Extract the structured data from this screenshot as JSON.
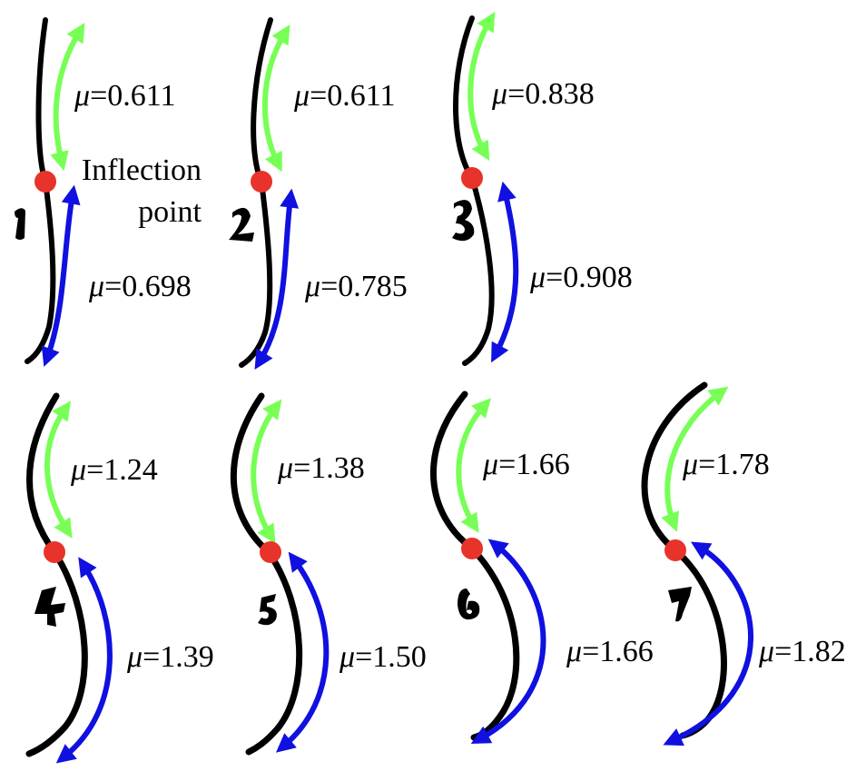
{
  "colors": {
    "upper_arc": "#77ff55",
    "lower_arc": "#1010e0",
    "inflection_point": "#e8332a",
    "stroke": "#000000"
  },
  "inflection_label": {
    "line1": "Inflection",
    "line2": "point"
  },
  "mu_symbol": "μ",
  "panels": [
    {
      "number": "1",
      "upper_mu": "=0.611",
      "lower_mu": "=0.698"
    },
    {
      "number": "2",
      "upper_mu": "=0.611",
      "lower_mu": "=0.785"
    },
    {
      "number": "3",
      "upper_mu": "=0.838",
      "lower_mu": "=0.908"
    },
    {
      "number": "4",
      "upper_mu": "=1.24",
      "lower_mu": "=1.39"
    },
    {
      "number": "5",
      "upper_mu": "=1.38",
      "lower_mu": "=1.50"
    },
    {
      "number": "6",
      "upper_mu": "=1.66",
      "lower_mu": "=1.66"
    },
    {
      "number": "7",
      "upper_mu": "=1.78",
      "lower_mu": "=1.82"
    }
  ]
}
